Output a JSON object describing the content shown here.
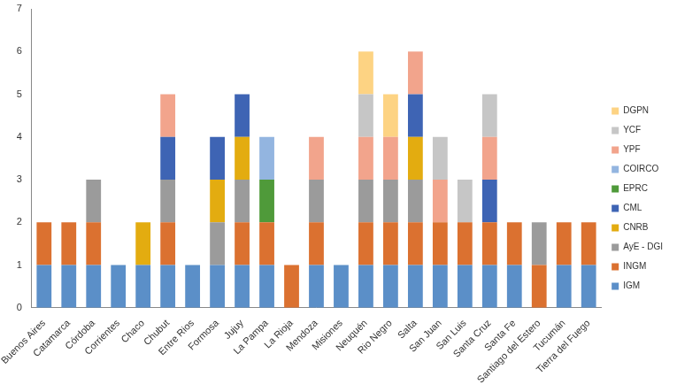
{
  "chart_data": {
    "type": "bar",
    "stacked": true,
    "grid": false,
    "legend": "right",
    "categories": [
      "Buenos Aires",
      "Catamarca",
      "Córdoba",
      "Corrientes",
      "Chaco",
      "Chubut",
      "Entre Rios",
      "Formosa",
      "Jujuy",
      "La Pampa",
      "La Rioja",
      "Mendoza",
      "Misiones",
      "Neuquén",
      "Rio Negro",
      "Salta",
      "San Juan",
      "San Luis",
      "Santa Cruz",
      "Santa Fe",
      "Santiago del Estero",
      "Tucumán",
      "Tierra del Fuego"
    ],
    "ylim": [
      0,
      7
    ],
    "yticks": [
      0,
      1,
      2,
      3,
      4,
      5,
      6,
      7
    ],
    "series": [
      {
        "name": "IGM",
        "color": "#5b8fc8",
        "values": [
          1,
          1,
          1,
          1,
          1,
          1,
          1,
          1,
          1,
          1,
          0,
          1,
          1,
          1,
          1,
          1,
          1,
          1,
          1,
          1,
          0,
          1,
          1
        ]
      },
      {
        "name": "INGM",
        "color": "#db7130",
        "values": [
          1,
          1,
          1,
          0,
          0,
          1,
          0,
          0,
          1,
          1,
          1,
          1,
          0,
          1,
          1,
          1,
          1,
          1,
          1,
          1,
          1,
          1,
          1
        ]
      },
      {
        "name": "AyE - DGI",
        "color": "#9b9b9b",
        "values": [
          0,
          0,
          1,
          0,
          0,
          1,
          0,
          1,
          1,
          0,
          0,
          1,
          0,
          1,
          1,
          1,
          0,
          0,
          0,
          0,
          1,
          0,
          0
        ]
      },
      {
        "name": "CNRB",
        "color": "#e3ac10",
        "values": [
          0,
          0,
          0,
          0,
          1,
          0,
          0,
          1,
          1,
          0,
          0,
          0,
          0,
          0,
          0,
          1,
          0,
          0,
          0,
          0,
          0,
          0,
          0
        ]
      },
      {
        "name": "CML",
        "color": "#3e64b4",
        "values": [
          0,
          0,
          0,
          0,
          0,
          1,
          0,
          1,
          1,
          0,
          0,
          0,
          0,
          0,
          0,
          1,
          0,
          0,
          1,
          0,
          0,
          0,
          0
        ]
      },
      {
        "name": "EPRC",
        "color": "#4f9a3a",
        "values": [
          0,
          0,
          0,
          0,
          0,
          0,
          0,
          0,
          0,
          1,
          0,
          0,
          0,
          0,
          0,
          0,
          0,
          0,
          0,
          0,
          0,
          0,
          0
        ]
      },
      {
        "name": "COIRCO",
        "color": "#93b5e0",
        "values": [
          0,
          0,
          0,
          0,
          0,
          0,
          0,
          0,
          0,
          1,
          0,
          0,
          0,
          0,
          0,
          0,
          0,
          0,
          0,
          0,
          0,
          0,
          0
        ]
      },
      {
        "name": "YPF",
        "color": "#f2a48c",
        "values": [
          0,
          0,
          0,
          0,
          0,
          1,
          0,
          0,
          0,
          0,
          0,
          1,
          0,
          1,
          1,
          1,
          1,
          0,
          1,
          0,
          0,
          0,
          0
        ]
      },
      {
        "name": "YCF",
        "color": "#c6c6c6",
        "values": [
          0,
          0,
          0,
          0,
          0,
          0,
          0,
          0,
          0,
          0,
          0,
          0,
          0,
          1,
          0,
          0,
          1,
          1,
          1,
          0,
          0,
          0,
          0
        ]
      },
      {
        "name": "DGPN",
        "color": "#fdd383",
        "values": [
          0,
          0,
          0,
          0,
          0,
          0,
          0,
          0,
          0,
          0,
          0,
          0,
          0,
          1,
          1,
          0,
          0,
          0,
          0,
          0,
          0,
          0,
          0
        ]
      }
    ]
  }
}
